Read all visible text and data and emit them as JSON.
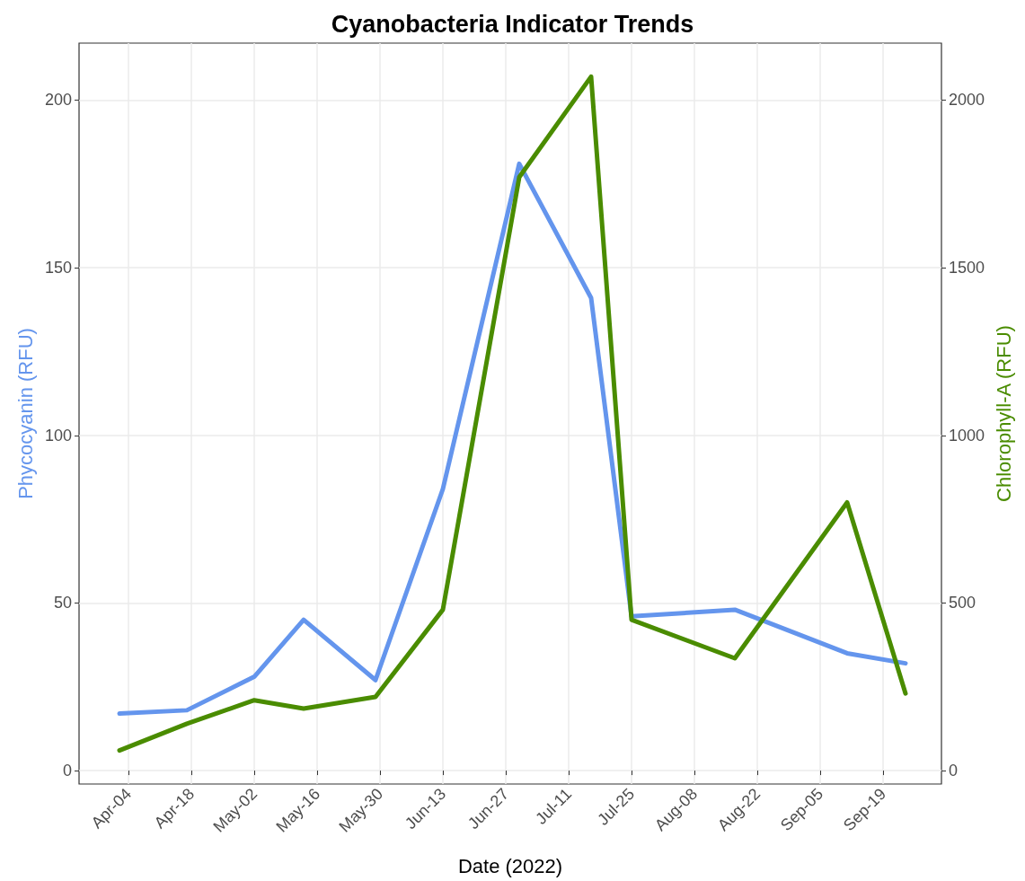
{
  "chart_data": {
    "type": "line",
    "title": "Cyanobacteria Indicator Trends",
    "xlabel": "Date (2022)",
    "ylabel": "Phycocyanin (RFU)",
    "y2label": "Chlorophyll-A (RFU)",
    "x": [
      "2022-04-02",
      "2022-04-17",
      "2022-05-02",
      "2022-05-13",
      "2022-05-29",
      "2022-06-13",
      "2022-06-30",
      "2022-07-16",
      "2022-07-25",
      "2022-08-17",
      "2022-09-11",
      "2022-09-24"
    ],
    "series": [
      {
        "color": "#6495ed",
        "values": [
          17,
          18,
          28,
          45,
          27,
          84,
          181,
          141,
          46,
          48,
          35,
          32
        ]
      },
      {
        "color": "#4a8c00",
        "axis": "y2",
        "values": [
          60,
          140,
          210,
          185,
          220,
          480,
          1770,
          2070,
          450,
          335,
          800,
          230
        ]
      }
    ],
    "xlim": [
      "2022-03-24",
      "2022-10-02"
    ],
    "xticks": [
      {
        "value": "2022-04-04",
        "label": "Apr-04"
      },
      {
        "value": "2022-04-18",
        "label": "Apr-18"
      },
      {
        "value": "2022-05-02",
        "label": "May-02"
      },
      {
        "value": "2022-05-16",
        "label": "May-16"
      },
      {
        "value": "2022-05-30",
        "label": "May-30"
      },
      {
        "value": "2022-06-13",
        "label": "Jun-13"
      },
      {
        "value": "2022-06-27",
        "label": "Jun-27"
      },
      {
        "value": "2022-07-11",
        "label": "Jul-11"
      },
      {
        "value": "2022-07-25",
        "label": "Jul-25"
      },
      {
        "value": "2022-08-08",
        "label": "Aug-08"
      },
      {
        "value": "2022-08-22",
        "label": "Aug-22"
      },
      {
        "value": "2022-09-05",
        "label": "Sep-05"
      },
      {
        "value": "2022-09-19",
        "label": "Sep-19"
      }
    ],
    "ylim": [
      -4,
      217
    ],
    "yticks": [
      0,
      50,
      100,
      150,
      200
    ],
    "y2lim": [
      -40,
      2170
    ],
    "y2ticks": [
      0,
      500,
      1000,
      1500,
      2000
    ],
    "grid": true,
    "line_style": "solid",
    "marker": "none"
  }
}
